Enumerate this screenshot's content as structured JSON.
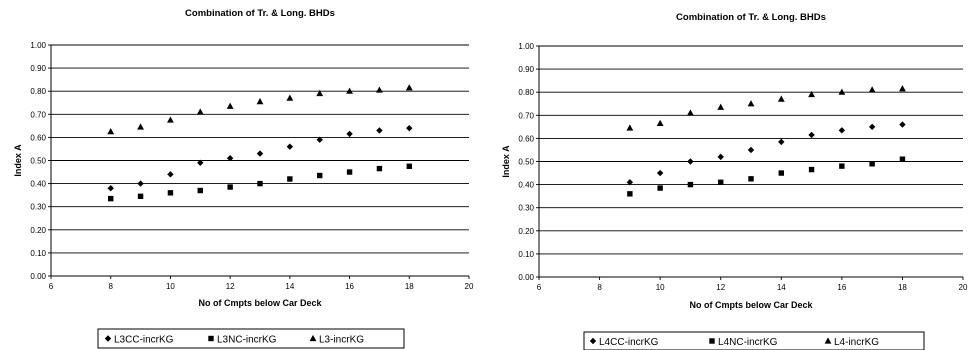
{
  "chart_data": [
    {
      "type": "scatter",
      "title": "Combination of Tr. & Long. BHDs",
      "xlabel": "No of Cmpts below Car Deck",
      "ylabel": "Index A",
      "xlim": [
        6,
        20
      ],
      "ylim": [
        0,
        1
      ],
      "xticks": [
        "6",
        "8",
        "10",
        "12",
        "14",
        "16",
        "18",
        "20"
      ],
      "yticks": [
        "0.00",
        "0.10",
        "0.20",
        "0.30",
        "0.40",
        "0.50",
        "0.60",
        "0.70",
        "0.80",
        "0.90",
        "1.00"
      ],
      "grid": "horizontal",
      "legend_position": "bottom",
      "series": [
        {
          "name": "L3CC-incrKG",
          "marker": "diamond",
          "x": [
            8,
            9,
            10,
            11,
            12,
            13,
            14,
            15,
            16,
            17,
            18
          ],
          "y": [
            0.38,
            0.4,
            0.44,
            0.49,
            0.51,
            0.53,
            0.56,
            0.59,
            0.615,
            0.63,
            0.64
          ]
        },
        {
          "name": "L3NC-incrKG",
          "marker": "square",
          "x": [
            8,
            9,
            10,
            11,
            12,
            13,
            14,
            15,
            16,
            17,
            18
          ],
          "y": [
            0.335,
            0.345,
            0.36,
            0.37,
            0.385,
            0.4,
            0.42,
            0.435,
            0.45,
            0.465,
            0.475
          ]
        },
        {
          "name": "L3-incrKG",
          "marker": "triangle",
          "x": [
            8,
            9,
            10,
            11,
            12,
            13,
            14,
            15,
            16,
            17,
            18
          ],
          "y": [
            0.625,
            0.645,
            0.675,
            0.71,
            0.735,
            0.755,
            0.77,
            0.79,
            0.8,
            0.805,
            0.815
          ]
        }
      ]
    },
    {
      "type": "scatter",
      "title": "Combination of Tr. & Long. BHDs",
      "xlabel": "No of Cmpts below Car Deck",
      "ylabel": "Index A",
      "xlim": [
        6,
        20
      ],
      "ylim": [
        0,
        1
      ],
      "xticks": [
        "6",
        "8",
        "10",
        "12",
        "14",
        "16",
        "18",
        "20"
      ],
      "yticks": [
        "0.00",
        "0.10",
        "0.20",
        "0.30",
        "0.40",
        "0.50",
        "0.60",
        "0.70",
        "0.80",
        "0.90",
        "1.00"
      ],
      "grid": "horizontal",
      "legend_position": "bottom",
      "series": [
        {
          "name": "L4CC-incrKG",
          "marker": "diamond",
          "x": [
            9,
            10,
            11,
            12,
            13,
            14,
            15,
            16,
            17,
            18
          ],
          "y": [
            0.41,
            0.45,
            0.5,
            0.52,
            0.55,
            0.585,
            0.615,
            0.635,
            0.65,
            0.66
          ]
        },
        {
          "name": "L4NC-incrKG",
          "marker": "square",
          "x": [
            9,
            10,
            11,
            12,
            13,
            14,
            15,
            16,
            17,
            18
          ],
          "y": [
            0.36,
            0.385,
            0.4,
            0.41,
            0.425,
            0.45,
            0.465,
            0.48,
            0.49,
            0.51
          ]
        },
        {
          "name": "L4-incrKG",
          "marker": "triangle",
          "x": [
            9,
            10,
            11,
            12,
            13,
            14,
            15,
            16,
            17,
            18
          ],
          "y": [
            0.645,
            0.665,
            0.71,
            0.735,
            0.75,
            0.77,
            0.79,
            0.8,
            0.81,
            0.815
          ]
        }
      ]
    }
  ]
}
